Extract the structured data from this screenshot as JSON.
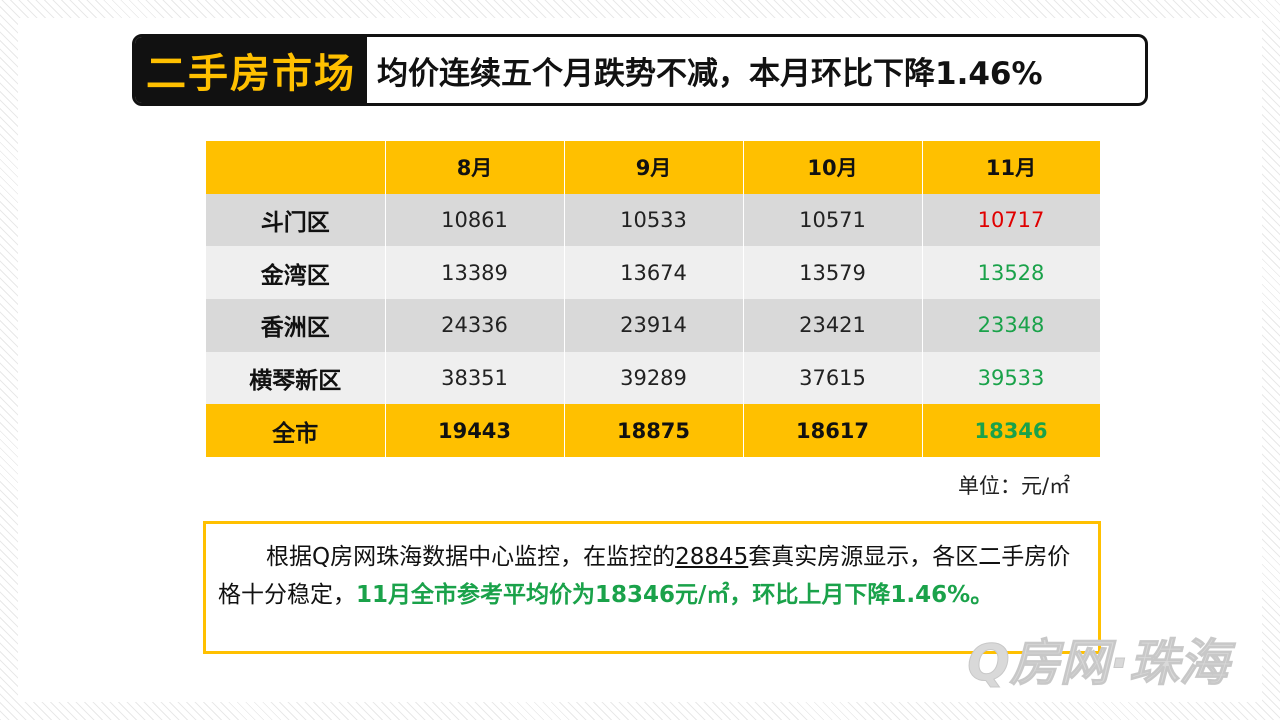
{
  "headline": {
    "tag": "二手房市场",
    "title": "均价连续五个月跌势不减，本月环比下降1.46%"
  },
  "table": {
    "columns": [
      "8月",
      "9月",
      "10月",
      "11月"
    ],
    "rows": [
      {
        "district": "斗门区",
        "values": [
          "10861",
          "10533",
          "10571",
          "10717"
        ]
      },
      {
        "district": "金湾区",
        "values": [
          "13389",
          "13674",
          "13579",
          "13528"
        ]
      },
      {
        "district": "香洲区",
        "values": [
          "24336",
          "23914",
          "23421",
          "23348"
        ]
      },
      {
        "district": "横琴新区",
        "values": [
          "38351",
          "39289",
          "37615",
          "39533"
        ]
      }
    ],
    "total": {
      "label": "全市",
      "values": [
        "19443",
        "18875",
        "18617",
        "18346"
      ]
    },
    "colors": {
      "header": "#ffc000",
      "up": "#e00000",
      "down": "#1aa24a"
    }
  },
  "unit": "单位：元/㎡",
  "summary": {
    "part1": "根据Q房网珠海数据中心监控，在监控的",
    "count": "28845",
    "part2": "套真实房源显示，各区二手房价格十分稳定，",
    "highlight": "11月全市参考平均价为18346元/㎡，环比上月下降1.46%。"
  },
  "watermark": "Q房网·珠海"
}
